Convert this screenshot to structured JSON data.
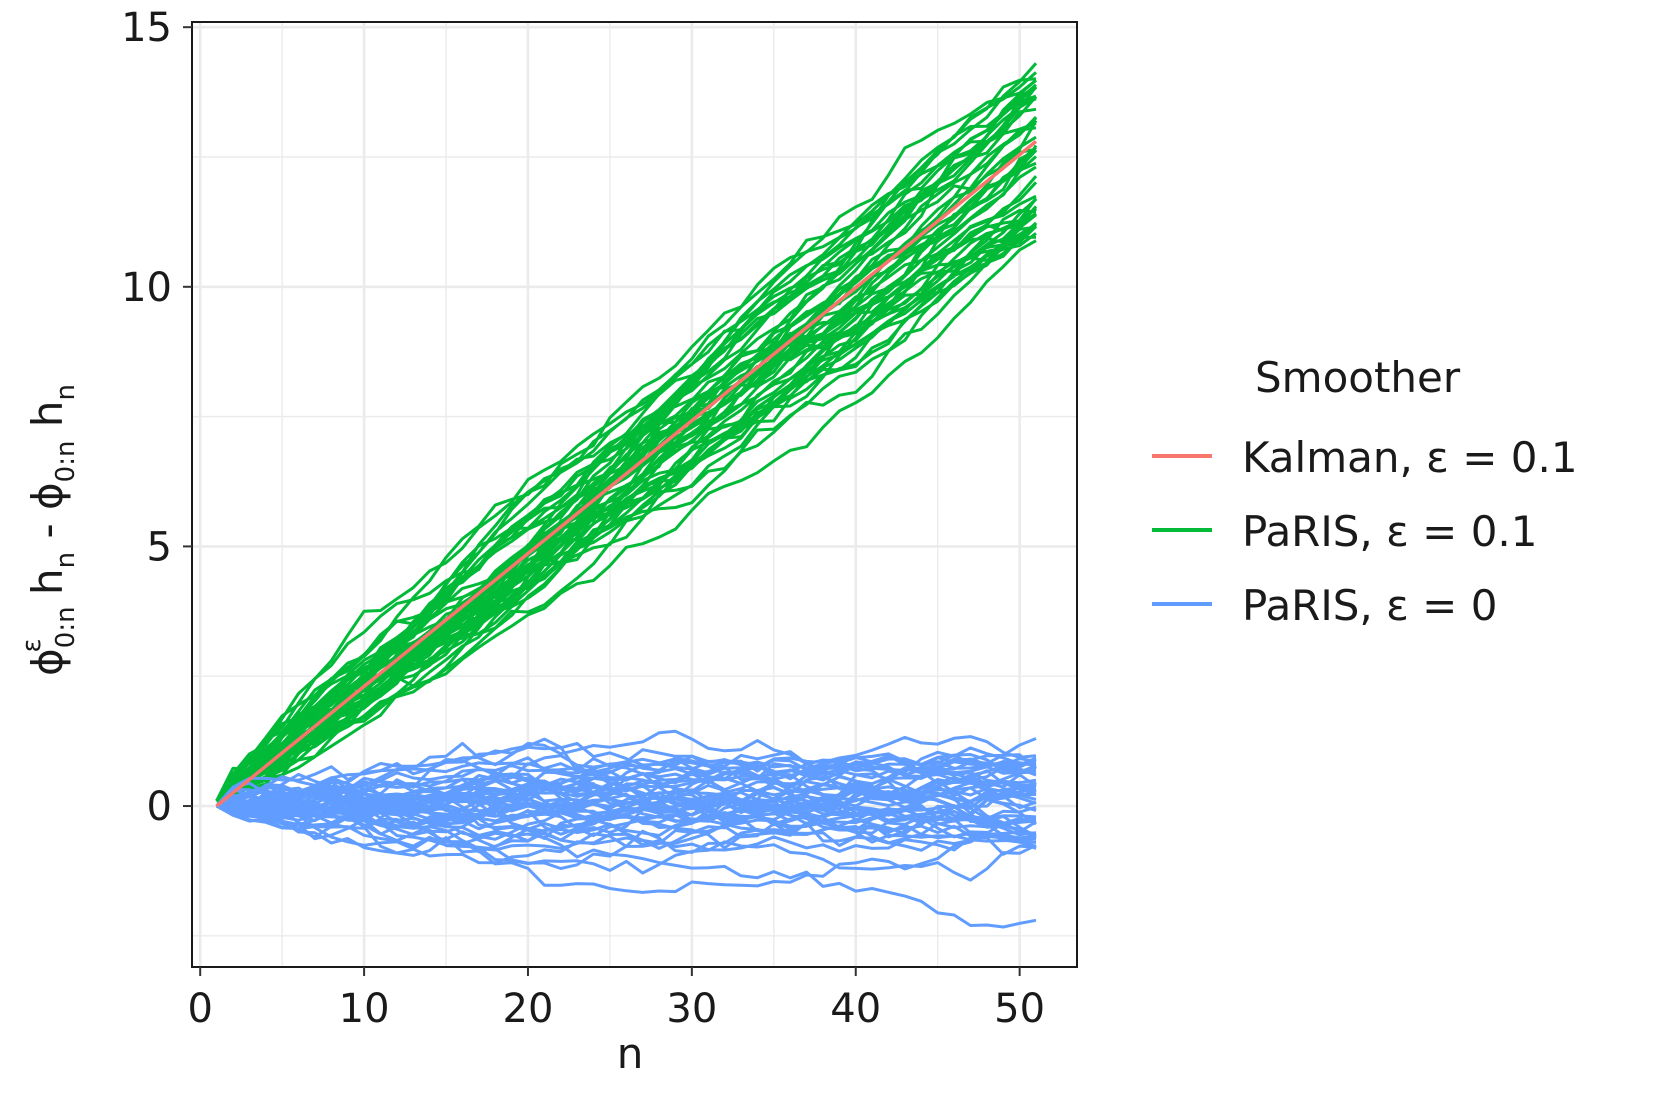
{
  "chart_data": {
    "type": "line",
    "xlabel": "n",
    "ylabel": {
      "phi": "ϕ",
      "superscript": "ε",
      "subscript": "0:n",
      "h": "h",
      "h_subscript": "n",
      "minus": "-"
    },
    "xlim": [
      -0.5,
      53.5
    ],
    "ylim": [
      -3.1,
      15.1
    ],
    "x_ticks": [
      0,
      10,
      20,
      30,
      40,
      50
    ],
    "x_tick_labels": [
      "0",
      "10",
      "20",
      "30",
      "40",
      "50"
    ],
    "y_ticks": [
      0,
      5,
      10,
      15
    ],
    "y_tick_labels": [
      "0",
      "5",
      "10",
      "15"
    ],
    "grid": true,
    "legend": {
      "title": "Smoother",
      "position": "right",
      "entries": [
        {
          "label": "Kalman, ε = 0.1",
          "color": "#F8766D"
        },
        {
          "label": "PaRIS, ε = 0.1",
          "color": "#00BA38"
        },
        {
          "label": "PaRIS, ε = 0",
          "color": "#619CFF"
        }
      ]
    },
    "x": [
      1,
      51
    ],
    "series": [
      {
        "name": "PaRIS, ε = 0.1",
        "color": "#00BA38",
        "runs": 50,
        "end_range": [
          10.8,
          14.4
        ],
        "start": 0.1
      },
      {
        "name": "PaRIS, ε = 0",
        "color": "#619CFF",
        "runs": 50,
        "end_range": [
          -2.2,
          1.3
        ],
        "start": 0.0
      },
      {
        "name": "Kalman, ε = 0.1",
        "color": "#F8766D",
        "runs": 1,
        "start": 0.0,
        "end": 12.8
      }
    ]
  }
}
